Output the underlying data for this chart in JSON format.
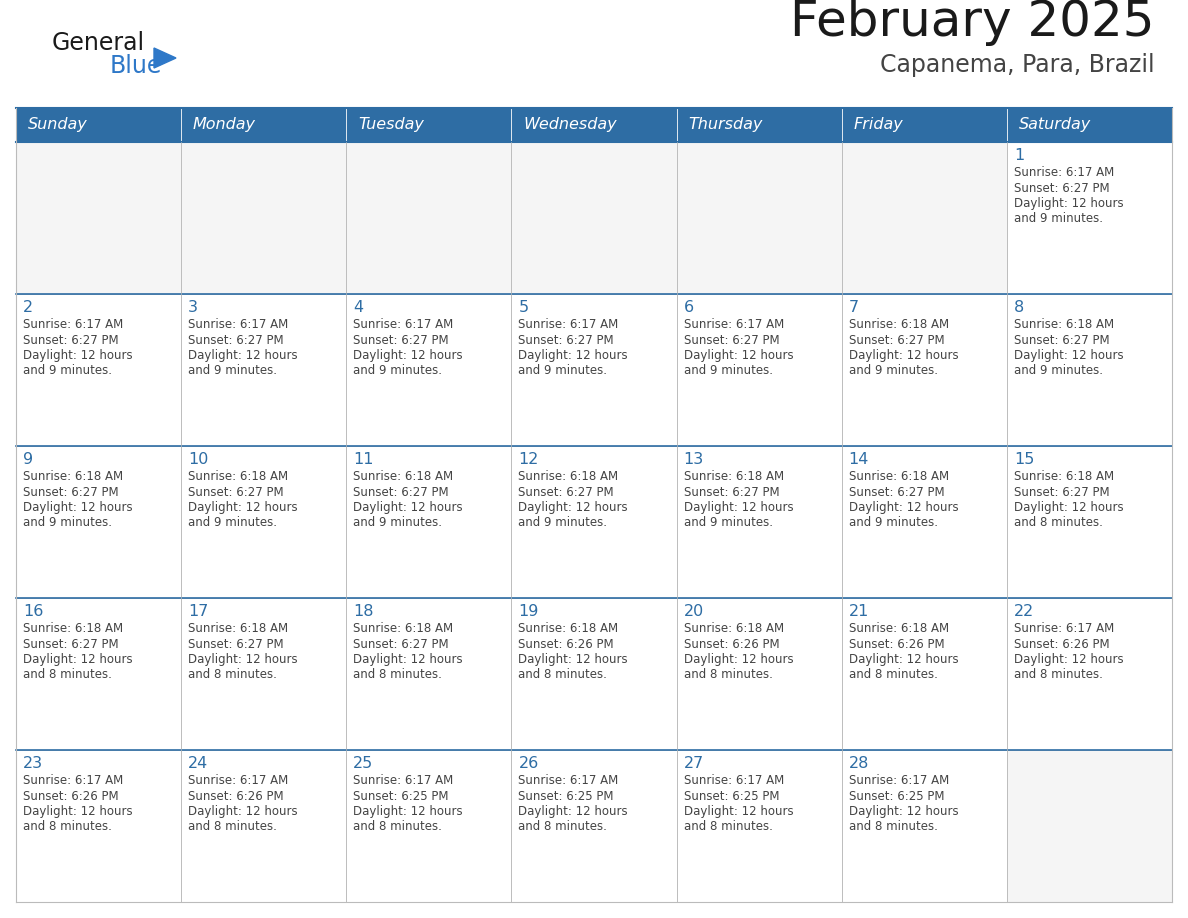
{
  "title": "February 2025",
  "subtitle": "Capanema, Para, Brazil",
  "days_of_week": [
    "Sunday",
    "Monday",
    "Tuesday",
    "Wednesday",
    "Thursday",
    "Friday",
    "Saturday"
  ],
  "header_bg": "#2E6DA4",
  "header_text": "#FFFFFF",
  "cell_bg": "#FFFFFF",
  "cell_bg_empty": "#F5F5F5",
  "cell_border": "#BBBBBB",
  "row_divider": "#2E6DA4",
  "day_num_color": "#2E6DA4",
  "text_color": "#444444",
  "title_color": "#1a1a1a",
  "subtitle_color": "#444444",
  "logo_general_color": "#1a1a1a",
  "logo_blue_color": "#2E78C8",
  "calendar": [
    [
      null,
      null,
      null,
      null,
      null,
      null,
      {
        "day": 1,
        "sunrise": "6:17 AM",
        "sunset": "6:27 PM",
        "daylight": "12 hours and 9 minutes."
      }
    ],
    [
      {
        "day": 2,
        "sunrise": "6:17 AM",
        "sunset": "6:27 PM",
        "daylight": "12 hours and 9 minutes."
      },
      {
        "day": 3,
        "sunrise": "6:17 AM",
        "sunset": "6:27 PM",
        "daylight": "12 hours and 9 minutes."
      },
      {
        "day": 4,
        "sunrise": "6:17 AM",
        "sunset": "6:27 PM",
        "daylight": "12 hours and 9 minutes."
      },
      {
        "day": 5,
        "sunrise": "6:17 AM",
        "sunset": "6:27 PM",
        "daylight": "12 hours and 9 minutes."
      },
      {
        "day": 6,
        "sunrise": "6:17 AM",
        "sunset": "6:27 PM",
        "daylight": "12 hours and 9 minutes."
      },
      {
        "day": 7,
        "sunrise": "6:18 AM",
        "sunset": "6:27 PM",
        "daylight": "12 hours and 9 minutes."
      },
      {
        "day": 8,
        "sunrise": "6:18 AM",
        "sunset": "6:27 PM",
        "daylight": "12 hours and 9 minutes."
      }
    ],
    [
      {
        "day": 9,
        "sunrise": "6:18 AM",
        "sunset": "6:27 PM",
        "daylight": "12 hours and 9 minutes."
      },
      {
        "day": 10,
        "sunrise": "6:18 AM",
        "sunset": "6:27 PM",
        "daylight": "12 hours and 9 minutes."
      },
      {
        "day": 11,
        "sunrise": "6:18 AM",
        "sunset": "6:27 PM",
        "daylight": "12 hours and 9 minutes."
      },
      {
        "day": 12,
        "sunrise": "6:18 AM",
        "sunset": "6:27 PM",
        "daylight": "12 hours and 9 minutes."
      },
      {
        "day": 13,
        "sunrise": "6:18 AM",
        "sunset": "6:27 PM",
        "daylight": "12 hours and 9 minutes."
      },
      {
        "day": 14,
        "sunrise": "6:18 AM",
        "sunset": "6:27 PM",
        "daylight": "12 hours and 9 minutes."
      },
      {
        "day": 15,
        "sunrise": "6:18 AM",
        "sunset": "6:27 PM",
        "daylight": "12 hours and 8 minutes."
      }
    ],
    [
      {
        "day": 16,
        "sunrise": "6:18 AM",
        "sunset": "6:27 PM",
        "daylight": "12 hours and 8 minutes."
      },
      {
        "day": 17,
        "sunrise": "6:18 AM",
        "sunset": "6:27 PM",
        "daylight": "12 hours and 8 minutes."
      },
      {
        "day": 18,
        "sunrise": "6:18 AM",
        "sunset": "6:27 PM",
        "daylight": "12 hours and 8 minutes."
      },
      {
        "day": 19,
        "sunrise": "6:18 AM",
        "sunset": "6:26 PM",
        "daylight": "12 hours and 8 minutes."
      },
      {
        "day": 20,
        "sunrise": "6:18 AM",
        "sunset": "6:26 PM",
        "daylight": "12 hours and 8 minutes."
      },
      {
        "day": 21,
        "sunrise": "6:18 AM",
        "sunset": "6:26 PM",
        "daylight": "12 hours and 8 minutes."
      },
      {
        "day": 22,
        "sunrise": "6:17 AM",
        "sunset": "6:26 PM",
        "daylight": "12 hours and 8 minutes."
      }
    ],
    [
      {
        "day": 23,
        "sunrise": "6:17 AM",
        "sunset": "6:26 PM",
        "daylight": "12 hours and 8 minutes."
      },
      {
        "day": 24,
        "sunrise": "6:17 AM",
        "sunset": "6:26 PM",
        "daylight": "12 hours and 8 minutes."
      },
      {
        "day": 25,
        "sunrise": "6:17 AM",
        "sunset": "6:25 PM",
        "daylight": "12 hours and 8 minutes."
      },
      {
        "day": 26,
        "sunrise": "6:17 AM",
        "sunset": "6:25 PM",
        "daylight": "12 hours and 8 minutes."
      },
      {
        "day": 27,
        "sunrise": "6:17 AM",
        "sunset": "6:25 PM",
        "daylight": "12 hours and 8 minutes."
      },
      {
        "day": 28,
        "sunrise": "6:17 AM",
        "sunset": "6:25 PM",
        "daylight": "12 hours and 8 minutes."
      },
      null
    ]
  ],
  "figsize": [
    11.88,
    9.18
  ],
  "dpi": 100
}
